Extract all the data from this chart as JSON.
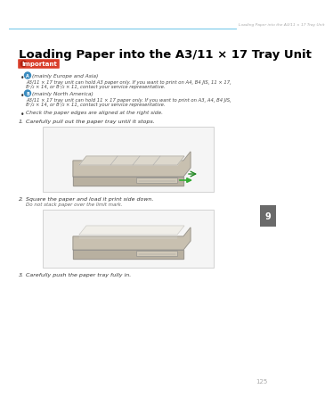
{
  "bg_color": "#ffffff",
  "header_line_color": "#6bc5e8",
  "header_text": "Loading Paper into the A3/11 × 17 Tray Unit",
  "header_text_color": "#aaaaaa",
  "title": "Loading Paper into the A3/11 × 17 Tray Unit",
  "title_color": "#000000",
  "important_bg": "#d93e2a",
  "important_text": "Important",
  "important_text_color": "#ffffff",
  "bullet_color": "#333333",
  "body_color": "#444444",
  "step_color": "#333333",
  "page_number": "125",
  "tab_color": "#6a6a6a",
  "tab_text": "9",
  "tab_text_color": "#ffffff",
  "region_color": "#3a8bbf",
  "note_color": "#666666"
}
